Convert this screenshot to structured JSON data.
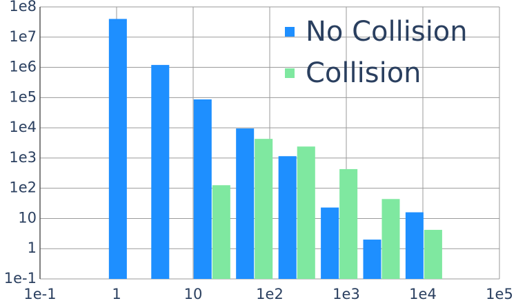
{
  "chart_data": {
    "type": "bar",
    "log_x": true,
    "log_y": true,
    "grid": true,
    "legend": "top-right",
    "x": [
      1.39,
      4.97,
      17.8,
      63.6,
      228,
      815,
      2910,
      10400
    ],
    "series": [
      {
        "name": "No Collision",
        "color": "#1e8fff",
        "values": [
          40000000,
          1200000,
          87000,
          9500,
          1150,
          23,
          2,
          16
        ]
      },
      {
        "name": "Collision",
        "color": "#7fe8a0",
        "values": [
          null,
          null,
          126,
          4300,
          2400,
          430,
          44,
          4.2
        ]
      }
    ],
    "xlim": [
      0.1,
      100000
    ],
    "xticks": [
      {
        "value": 0.1,
        "label": "1e-1"
      },
      1,
      10,
      {
        "value": 100,
        "label": "1e2"
      },
      {
        "value": 1000,
        "label": "1e3"
      },
      {
        "value": 10000,
        "label": "1e4"
      },
      {
        "value": 100000,
        "label": "1e5"
      }
    ],
    "ylim": [
      0.1,
      100000000
    ],
    "yticks": [
      {
        "value": 0.1,
        "label": "1e-1"
      },
      1,
      10,
      {
        "value": 100,
        "label": "1e2"
      },
      {
        "value": 1000,
        "label": "1e3"
      },
      {
        "value": 10000,
        "label": "1e4"
      },
      {
        "value": 100000,
        "label": "1e5"
      },
      {
        "value": 1000000,
        "label": "1e6"
      },
      {
        "value": 10000000,
        "label": "1e7"
      },
      {
        "value": 100000000,
        "label": "1e8"
      }
    ]
  }
}
